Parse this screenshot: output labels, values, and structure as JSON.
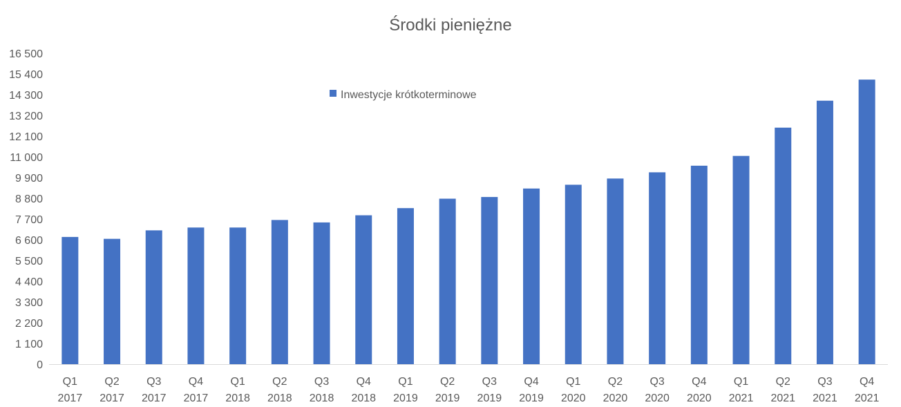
{
  "chart_data": {
    "type": "bar",
    "title": "Środki pieniężne",
    "xlabel": "",
    "ylabel": "",
    "categories": [
      [
        "Q1",
        "2017"
      ],
      [
        "Q2",
        "2017"
      ],
      [
        "Q3",
        "2017"
      ],
      [
        "Q4",
        "2017"
      ],
      [
        "Q1",
        "2018"
      ],
      [
        "Q2",
        "2018"
      ],
      [
        "Q3",
        "2018"
      ],
      [
        "Q4",
        "2018"
      ],
      [
        "Q1",
        "2019"
      ],
      [
        "Q2",
        "2019"
      ],
      [
        "Q3",
        "2019"
      ],
      [
        "Q4",
        "2019"
      ],
      [
        "Q1",
        "2020"
      ],
      [
        "Q2",
        "2020"
      ],
      [
        "Q3",
        "2020"
      ],
      [
        "Q4",
        "2020"
      ],
      [
        "Q1",
        "2021"
      ],
      [
        "Q2",
        "2021"
      ],
      [
        "Q3",
        "2021"
      ],
      [
        "Q4",
        "2021"
      ]
    ],
    "series": [
      {
        "name": "Inwestycje krótkoterminowe",
        "color": "#4472C4",
        "values": [
          6750,
          6650,
          7100,
          7250,
          7250,
          7650,
          7520,
          7900,
          8280,
          8780,
          8870,
          9320,
          9520,
          9850,
          10180,
          10530,
          11050,
          12550,
          13980,
          15100
        ]
      }
    ],
    "ylim": [
      0,
      16500
    ],
    "yticks": [
      0,
      1100,
      2200,
      3300,
      4400,
      5500,
      6600,
      7700,
      8800,
      9900,
      11000,
      12100,
      13200,
      14300,
      15400,
      16500
    ],
    "ytick_labels": [
      "0",
      "1 100",
      "2 200",
      "3 300",
      "4 400",
      "5 500",
      "6 600",
      "7 700",
      "8 800",
      "9 900",
      "11 000",
      "12 100",
      "13 200",
      "14 300",
      "15 400",
      "16 500"
    ],
    "grid": false,
    "legend_position": "top-center",
    "axis_color": "#D9D9D9",
    "text_color": "#595959"
  }
}
